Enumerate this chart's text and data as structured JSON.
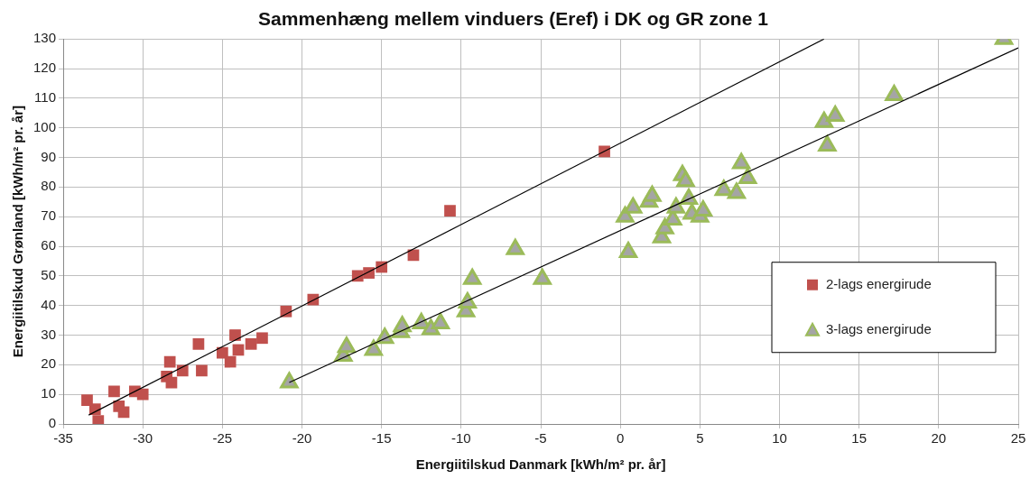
{
  "chart_data": {
    "type": "scatter",
    "title": "Sammenhæng mellem vinduers (Eref) i DK og GR zone 1",
    "xlabel": "Energiitilskud Danmark [kWh/m² pr. år]",
    "ylabel": "Energiitilskud Grønland [kWh/m² pr. år]",
    "xlim": [
      -35,
      25
    ],
    "xticks": [
      -35,
      -30,
      -25,
      -20,
      -15,
      -10,
      -5,
      0,
      5,
      10,
      15,
      20,
      25
    ],
    "ylim": [
      0,
      130
    ],
    "yticks": [
      0,
      10,
      20,
      30,
      40,
      50,
      60,
      70,
      80,
      90,
      100,
      110,
      120,
      130
    ],
    "grid": true,
    "legend": "right",
    "series": [
      {
        "name": "2-lags energirude",
        "color": "#c0504d",
        "marker": "square",
        "x": [
          -33.5,
          -33,
          -32.8,
          -31.8,
          -31.5,
          -31.2,
          -30.5,
          -30,
          -28.5,
          -28.3,
          -28.2,
          -27.5,
          -26.5,
          -26.3,
          -25,
          -24.5,
          -24.2,
          -24,
          -23.2,
          -22.5,
          -21,
          -19.3,
          -16.5,
          -15.8,
          -15,
          -13,
          -10.7,
          -1
        ],
        "values": [
          8,
          5,
          1,
          11,
          6,
          4,
          11,
          10,
          16,
          21,
          14,
          18,
          27,
          18,
          24,
          21,
          30,
          25,
          27,
          29,
          38,
          42,
          50,
          51,
          53,
          57,
          72,
          92
        ]
      },
      {
        "name": "3-lags energirude",
        "color": "#a5a5a5",
        "marker": "triangle",
        "x": [
          -20.8,
          -17.4,
          -17.2,
          -15.5,
          -14.8,
          -13.8,
          -13.7,
          -12.5,
          -11.9,
          -11.3,
          -9.7,
          -9.6,
          -9.3,
          -6.6,
          -4.9,
          0.3,
          0.5,
          0.8,
          1.8,
          2,
          2.6,
          2.8,
          3.3,
          3.5,
          3.9,
          4.1,
          4.3,
          4.5,
          5,
          5.2,
          6.5,
          7.3,
          7.6,
          8,
          12.8,
          13,
          13.5,
          17.2,
          24.1
        ],
        "values": [
          14,
          23,
          26,
          25,
          29,
          31,
          33,
          34,
          32,
          34,
          38,
          41,
          49,
          59,
          49,
          70,
          58,
          73,
          75,
          77,
          63,
          66,
          69,
          73,
          84,
          82,
          76,
          71,
          70,
          72,
          79,
          78,
          88,
          83,
          102,
          94,
          104,
          111,
          130
        ]
      },
      {
        "type": "line",
        "color": "#000000",
        "marker": "none",
        "x": [
          -33.4,
          12.8
        ],
        "values": [
          3,
          130
        ]
      },
      {
        "type": "line",
        "color": "#000000",
        "marker": "none",
        "x": [
          -20.8,
          25
        ],
        "values": [
          14,
          127
        ]
      }
    ]
  }
}
